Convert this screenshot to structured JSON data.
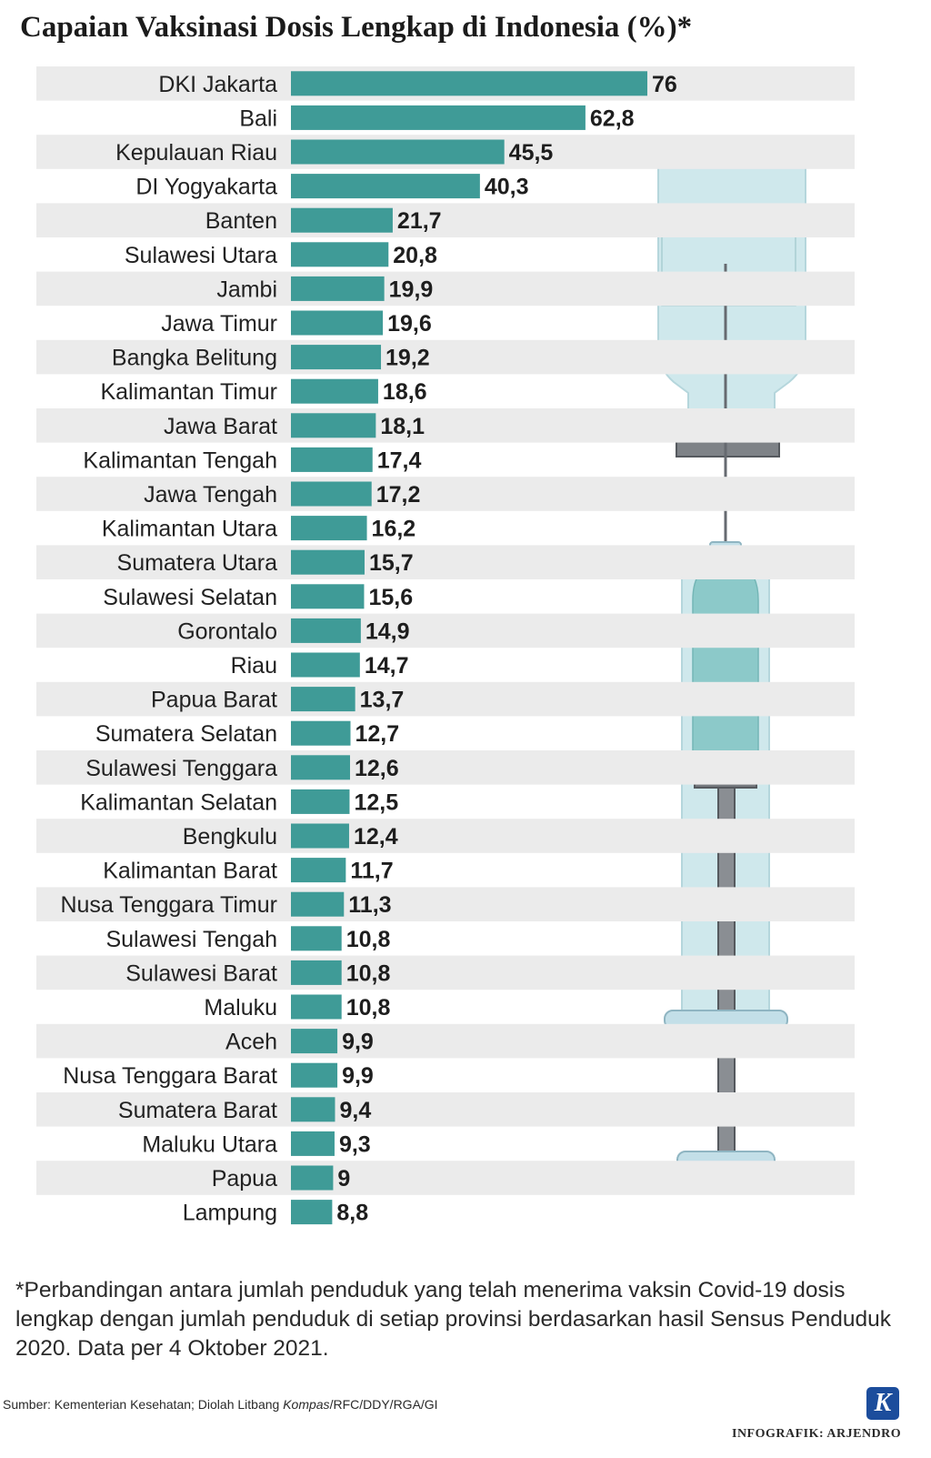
{
  "title": "Capaian Vaksinasi Dosis Lengkap di Indonesia (%)*",
  "footnote": "*Perbandingan antara jumlah penduduk yang telah menerima vaksin Covid-19 dosis lengkap dengan jumlah penduduk di setiap provinsi berdasarkan hasil Sensus Penduduk 2020. Data per 4 Oktober 2021.",
  "source": {
    "prefix": "Sumber: Kementerian Kesehatan; Diolah Litbang ",
    "italic": "Kompas",
    "suffix": "/RFC/DDY/RGA/GI"
  },
  "credit": "INFOGRAFIK: ARJENDRO",
  "logo_letter": "K",
  "icons": [
    "syringe-illustration",
    "kompas-logo"
  ],
  "colors": {
    "bar": "#3f9b97",
    "row_stripe": "#ebebeb",
    "syringe_glass": "#cfe8ec",
    "syringe_liquid": "#8cc9c9",
    "syringe_metal": "#707479",
    "logo": "#1c4d9c"
  },
  "chart_data": {
    "type": "bar",
    "orientation": "horizontal",
    "title": "Capaian Vaksinasi Dosis Lengkap di Indonesia (%)*",
    "categories": [
      "DKI Jakarta",
      "Bali",
      "Kepulauan Riau",
      "DI Yogyakarta",
      "Banten",
      "Sulawesi Utara",
      "Jambi",
      "Jawa Timur",
      "Bangka Belitung",
      "Kalimantan Timur",
      "Jawa Barat",
      "Kalimantan Tengah",
      "Jawa Tengah",
      "Kalimantan Utara",
      "Sumatera Utara",
      "Sulawesi Selatan",
      "Gorontalo",
      "Riau",
      "Papua Barat",
      "Sumatera Selatan",
      "Sulawesi Tenggara",
      "Kalimantan Selatan",
      "Bengkulu",
      "Kalimantan Barat",
      "Nusa Tenggara Timur",
      "Sulawesi Tengah",
      "Sulawesi Barat",
      "Maluku",
      "Aceh",
      "Nusa Tenggara Barat",
      "Sumatera Barat",
      "Maluku Utara",
      "Papua",
      "Lampung"
    ],
    "values": [
      76,
      62.8,
      45.5,
      40.3,
      21.7,
      20.8,
      19.9,
      19.6,
      19.2,
      18.6,
      18.1,
      17.4,
      17.2,
      16.2,
      15.7,
      15.6,
      14.9,
      14.7,
      13.7,
      12.7,
      12.6,
      12.5,
      12.4,
      11.7,
      11.3,
      10.8,
      10.8,
      10.8,
      9.9,
      9.9,
      9.4,
      9.3,
      9,
      8.8
    ],
    "value_labels": [
      "76",
      "62,8",
      "45,5",
      "40,3",
      "21,7",
      "20,8",
      "19,9",
      "19,6",
      "19,2",
      "18,6",
      "18,1",
      "17,4",
      "17,2",
      "16,2",
      "15,7",
      "15,6",
      "14,9",
      "14,7",
      "13,7",
      "12,7",
      "12,6",
      "12,5",
      "12,4",
      "11,7",
      "11,3",
      "10,8",
      "10,8",
      "10,8",
      "9,9",
      "9,9",
      "9,4",
      "9,3",
      "9",
      "8,8"
    ],
    "unit": "%",
    "xlim": [
      0,
      76
    ],
    "grid": false,
    "legend": "none",
    "alternating_row_shading": true
  }
}
